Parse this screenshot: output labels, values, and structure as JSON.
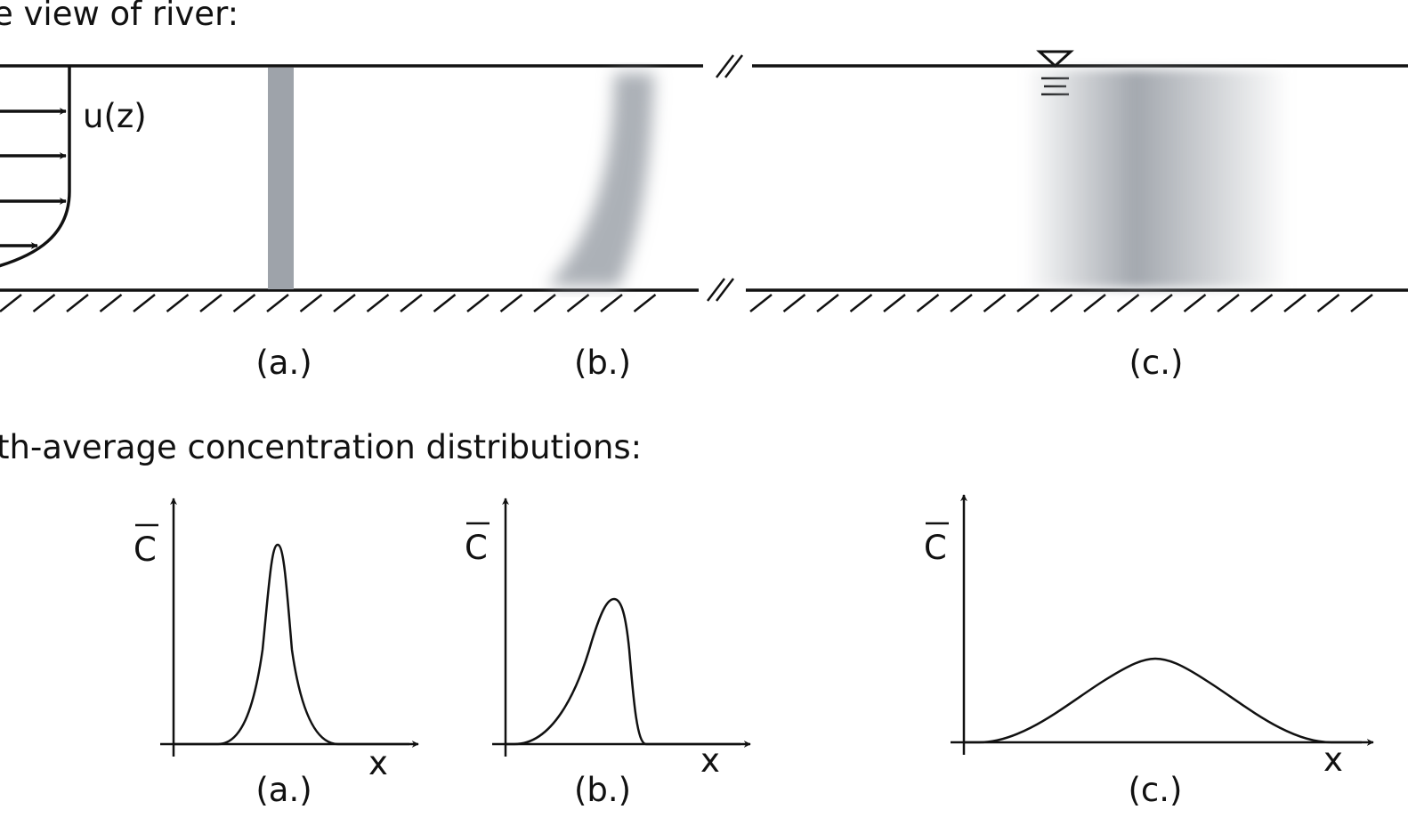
{
  "top_section": {
    "title": "e view of river:",
    "velocity_label": "u(z)",
    "labels": [
      "(a.)",
      "(b.)",
      "(c.)"
    ]
  },
  "bottom_section": {
    "title": "th-average concentration distributions:",
    "plots": [
      {
        "ylabel": "C",
        "xlabel": "x",
        "caption": "(a.)"
      },
      {
        "ylabel": "C",
        "xlabel": "x",
        "caption": "(b.)"
      },
      {
        "ylabel": "C",
        "xlabel": "x",
        "caption": "(c.)"
      }
    ]
  },
  "colors": {
    "line": "#111111",
    "plume": "#9ea3aa"
  }
}
